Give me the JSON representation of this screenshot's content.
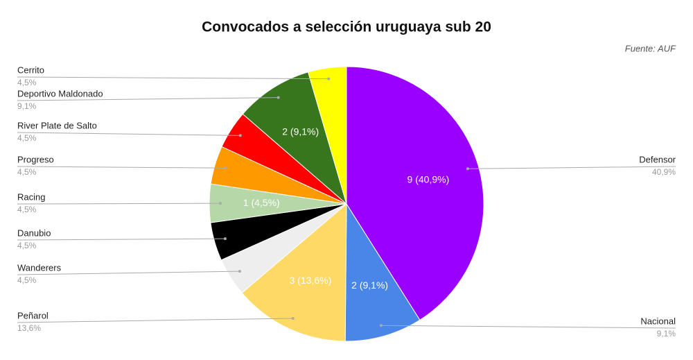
{
  "chart_data": {
    "type": "pie",
    "title": "Convocados a selección uruguaya sub 20",
    "subtitle": "Fuente: AUF",
    "categories": [
      "Defensor",
      "Nacional",
      "Peñarol",
      "Wanderers",
      "Danubio",
      "Racing",
      "Progreso",
      "River Plate de Salto",
      "Deportivo Maldonado",
      "Cerrito"
    ],
    "values": [
      40.9,
      9.1,
      13.6,
      4.5,
      4.5,
      4.5,
      4.5,
      4.5,
      9.1,
      4.5
    ],
    "value_labels": [
      "40,9%",
      "9,1%",
      "13,6%",
      "4,5%",
      "4,5%",
      "4,5%",
      "4,5%",
      "4,5%",
      "9,1%",
      "4,5%"
    ],
    "inner_labels": [
      "9 (40,9%)",
      "2 (9,1%)",
      "3 (13,6%)",
      null,
      null,
      "1 (4,5%)",
      null,
      null,
      "2 (9,1%)",
      null
    ],
    "colors": [
      "#9900ff",
      "#4a86e8",
      "#ffd966",
      "#eeeeee",
      "#000000",
      "#b6d7a8",
      "#ff9900",
      "#ff0000",
      "#38761d",
      "#ffff00"
    ]
  }
}
